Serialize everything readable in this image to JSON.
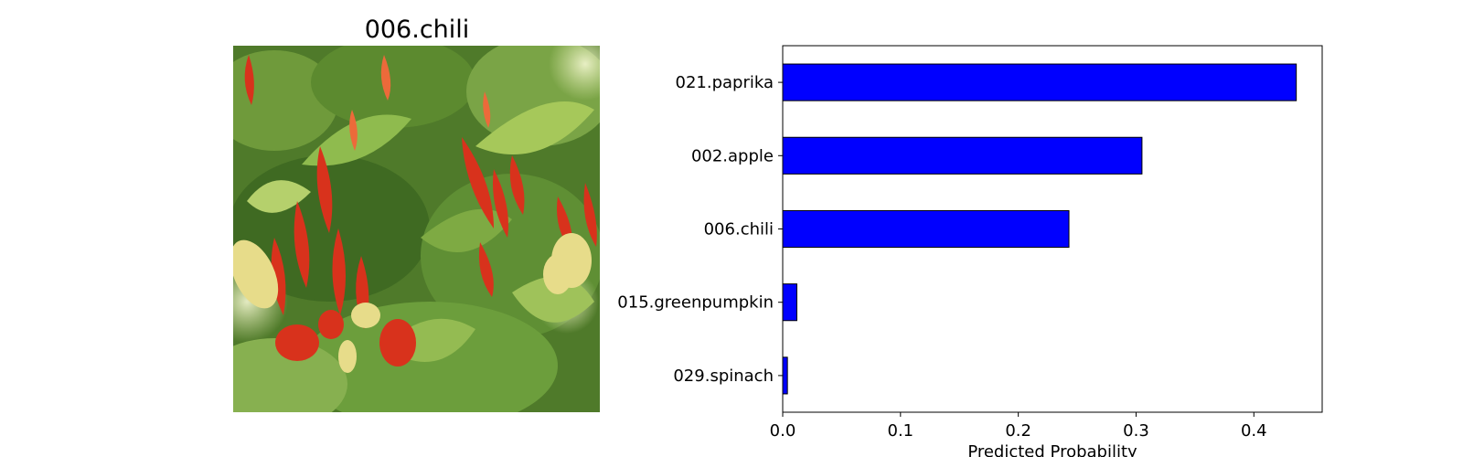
{
  "image_panel": {
    "title": "006.chili"
  },
  "colors": {
    "bar_fill": "#0000ff",
    "bar_edge": "#000000",
    "axis": "#000000"
  },
  "chart_data": {
    "type": "bar",
    "orientation": "horizontal",
    "categories": [
      "021.paprika",
      "002.apple",
      "006.chili",
      "015.greenpumpkin",
      "029.spinach"
    ],
    "values": [
      0.436,
      0.305,
      0.243,
      0.012,
      0.004
    ],
    "xlabel": "Predicted Probability",
    "ylabel": "",
    "xlim": [
      0,
      0.458
    ],
    "xticks": [
      0.0,
      0.1,
      0.2,
      0.3,
      0.4
    ],
    "xtick_labels": [
      "0.0",
      "0.1",
      "0.2",
      "0.3",
      "0.4"
    ],
    "grid": false
  }
}
